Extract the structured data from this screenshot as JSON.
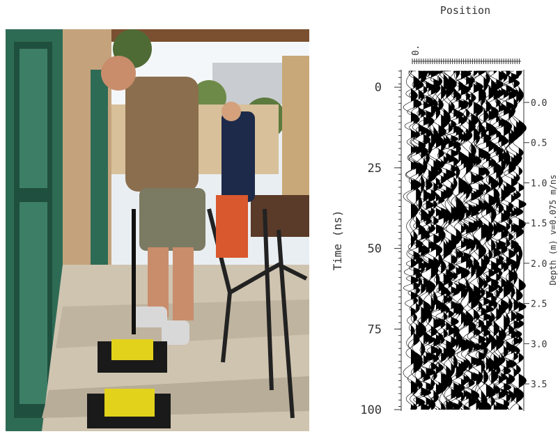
{
  "radargram": {
    "title": "Position",
    "x_tick_label": "0.",
    "y_label": "Time (ns)",
    "ylim": [
      -5,
      100
    ],
    "yticks": [
      0,
      25,
      50,
      75,
      100
    ],
    "y2_label": "Depth (m) v=0.075 m/ns",
    "y2lim": [
      -0.39,
      3.82
    ],
    "y2ticks": [
      {
        "value": 0,
        "label": "0.0"
      },
      0.5,
      {
        "value": 1,
        "label": "1.0"
      },
      1.5,
      {
        "value": 2,
        "label": "2.0"
      },
      2.5,
      {
        "value": 3,
        "label": "3.0"
      },
      3.5
    ]
  }
}
